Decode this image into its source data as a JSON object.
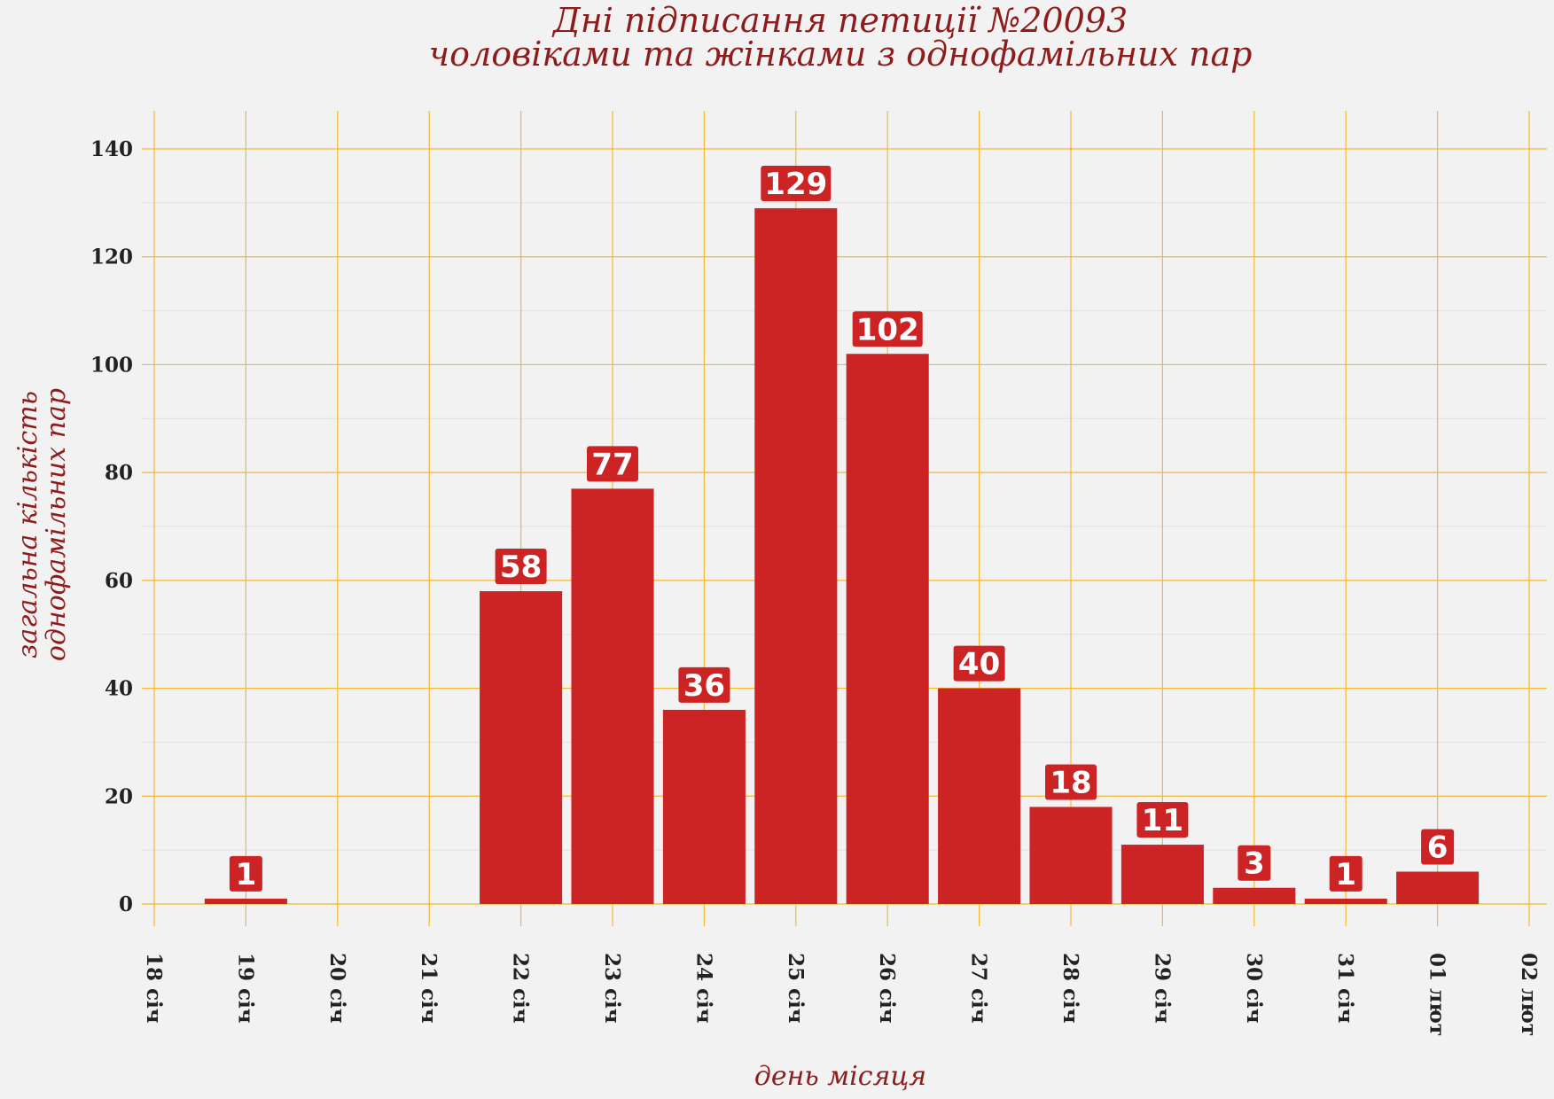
{
  "colors": {
    "background": "#f2f2f2",
    "bar": "#cc2424",
    "grid_major": "#f5b82e",
    "grid_minor": "#e0e0e0",
    "title": "#8e1c1c",
    "tick_text": "#222222"
  },
  "chart_data": {
    "type": "bar",
    "title": [
      "Дні підписання петиції №20093",
      "чоловіками та жінками з однофамільних пар"
    ],
    "xlabel": "день місяця",
    "ylabel": [
      "загальна кількість",
      "однофамільних пар"
    ],
    "x_ticks": [
      "18 січ",
      "19 січ",
      "20 січ",
      "21 січ",
      "22 січ",
      "23 січ",
      "24 січ",
      "25 січ",
      "26 січ",
      "27 січ",
      "28 січ",
      "29 січ",
      "30 січ",
      "31 січ",
      "01 лют",
      "02 лют"
    ],
    "categories": [
      "19 січ",
      "22 січ",
      "23 січ",
      "24 січ",
      "25 січ",
      "26 січ",
      "27 січ",
      "28 січ",
      "29 січ",
      "30 січ",
      "31 січ",
      "01 лют"
    ],
    "values": [
      1,
      58,
      77,
      36,
      129,
      102,
      40,
      18,
      11,
      3,
      1,
      6
    ],
    "y_ticks": [
      0,
      20,
      40,
      60,
      80,
      100,
      120,
      140
    ],
    "ylim": [
      -7,
      147
    ],
    "grid": true,
    "legend": "none"
  }
}
